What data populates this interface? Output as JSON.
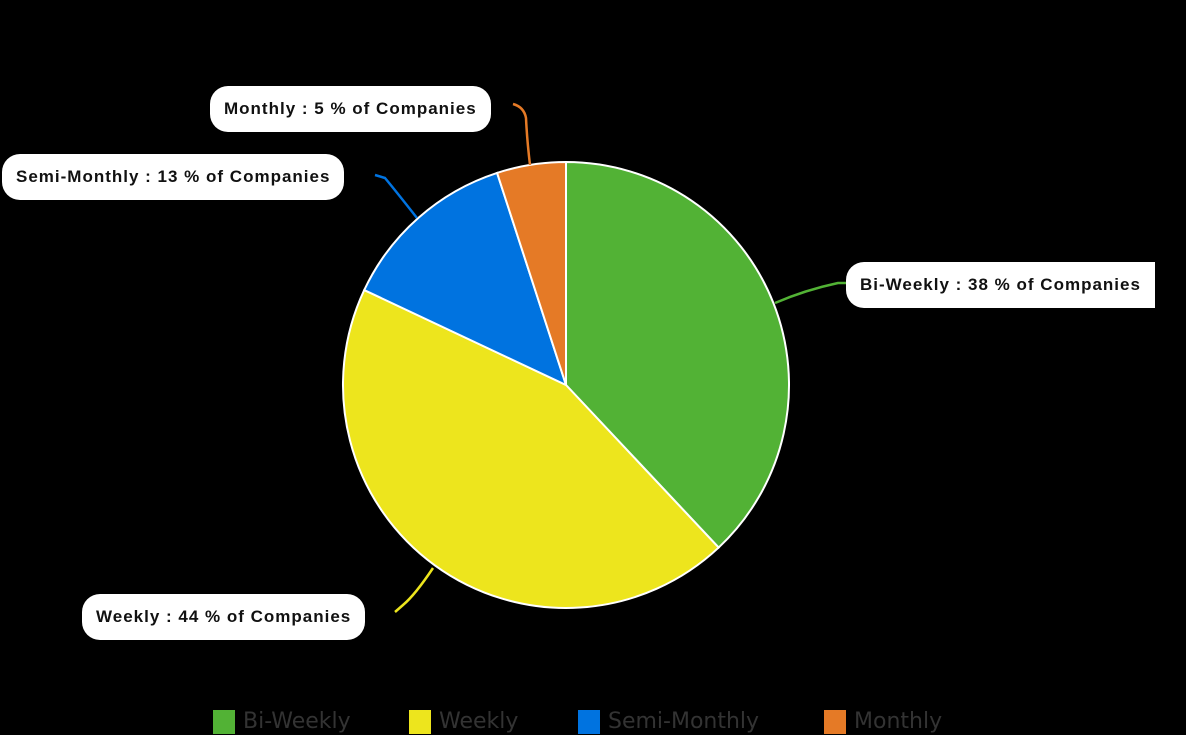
{
  "chart_data": {
    "type": "pie",
    "title": "",
    "start_angle": "12 o'clock, clockwise",
    "categories": [
      "Bi-Weekly",
      "Weekly",
      "Semi-Monthly",
      "Monthly"
    ],
    "values": [
      38,
      44,
      13,
      5
    ],
    "unit": "% of Companies",
    "colors": [
      "#52b235",
      "#ede51d",
      "#0073e0",
      "#e57a26"
    ],
    "labels": [
      "Bi-Weekly : 38 % of Companies",
      "Weekly : 44 % of Companies",
      "Semi-Monthly : 13 % of Companies",
      "Monthly : 5 % of Companies"
    ],
    "legend_position": "bottom",
    "background": "#000000"
  },
  "legend": {
    "items": [
      {
        "label": "Bi-Weekly",
        "color": "#52b235"
      },
      {
        "label": "Weekly",
        "color": "#ede51d"
      },
      {
        "label": "Semi-Monthly",
        "color": "#0073e0"
      },
      {
        "label": "Monthly",
        "color": "#e57a26"
      }
    ]
  }
}
